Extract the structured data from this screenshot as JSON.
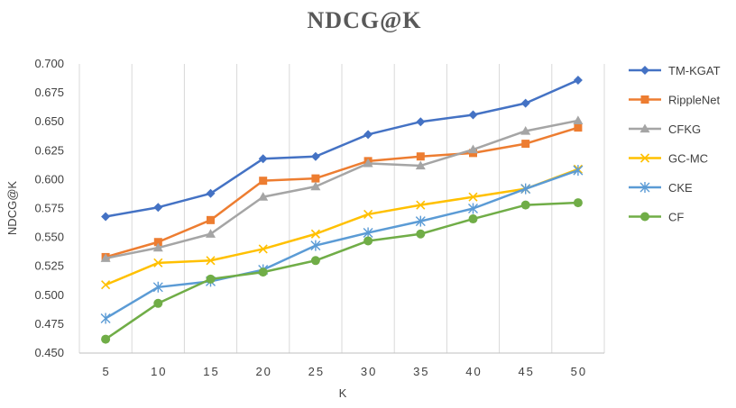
{
  "chart_data": {
    "type": "line",
    "title": "NDCG@K",
    "xlabel": "K",
    "ylabel": "NDCG@K",
    "x": [
      5,
      10,
      15,
      20,
      25,
      30,
      35,
      40,
      45,
      50
    ],
    "ylim": [
      0.45,
      0.7
    ],
    "yticks": [
      "0.450",
      "0.475",
      "0.500",
      "0.525",
      "0.550",
      "0.575",
      "0.600",
      "0.625",
      "0.650",
      "0.675",
      "0.700"
    ],
    "grid": "vertical",
    "legend_position": "right",
    "series": [
      {
        "name": "TM-KGAT",
        "color": "#4472C4",
        "marker": "diamond",
        "values": [
          0.568,
          0.576,
          0.588,
          0.618,
          0.62,
          0.639,
          0.65,
          0.656,
          0.666,
          0.686
        ]
      },
      {
        "name": "RippleNet",
        "color": "#ED7D31",
        "marker": "square",
        "values": [
          0.533,
          0.546,
          0.565,
          0.599,
          0.601,
          0.616,
          0.62,
          0.623,
          0.631,
          0.645
        ]
      },
      {
        "name": "CFKG",
        "color": "#A5A5A5",
        "marker": "triangle",
        "values": [
          0.532,
          0.541,
          0.553,
          0.585,
          0.594,
          0.614,
          0.612,
          0.626,
          0.642,
          0.651
        ]
      },
      {
        "name": "GC-MC",
        "color": "#FFC000",
        "marker": "x",
        "values": [
          0.509,
          0.528,
          0.53,
          0.54,
          0.553,
          0.57,
          0.578,
          0.585,
          0.592,
          0.609
        ]
      },
      {
        "name": "CKE",
        "color": "#5B9BD5",
        "marker": "star",
        "values": [
          0.48,
          0.507,
          0.512,
          0.522,
          0.543,
          0.554,
          0.564,
          0.575,
          0.592,
          0.608
        ]
      },
      {
        "name": "CF",
        "color": "#70AD47",
        "marker": "circle",
        "values": [
          0.462,
          0.493,
          0.514,
          0.52,
          0.53,
          0.547,
          0.553,
          0.566,
          0.578,
          0.58
        ]
      }
    ]
  }
}
